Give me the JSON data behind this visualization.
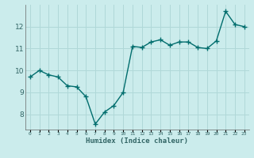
{
  "xlabel": "Humidex (Indice chaleur)",
  "x": [
    0,
    1,
    2,
    3,
    4,
    5,
    6,
    7,
    8,
    9,
    10,
    11,
    12,
    13,
    14,
    15,
    16,
    17,
    18,
    19,
    20,
    21,
    22,
    23
  ],
  "y": [
    9.7,
    10.0,
    9.8,
    9.7,
    9.3,
    9.25,
    8.8,
    7.55,
    8.1,
    8.4,
    9.0,
    11.1,
    11.05,
    11.3,
    11.4,
    11.15,
    11.3,
    11.3,
    11.05,
    11.0,
    11.35,
    12.7,
    12.1,
    12.0
  ],
  "line_color": "#006d6d",
  "bg_color": "#cbecec",
  "grid_color": "#b0d8d8",
  "ylim": [
    7.3,
    13.0
  ],
  "yticks": [
    8,
    9,
    10,
    11,
    12
  ],
  "marker": "+",
  "marker_size": 4,
  "line_width": 1.0
}
